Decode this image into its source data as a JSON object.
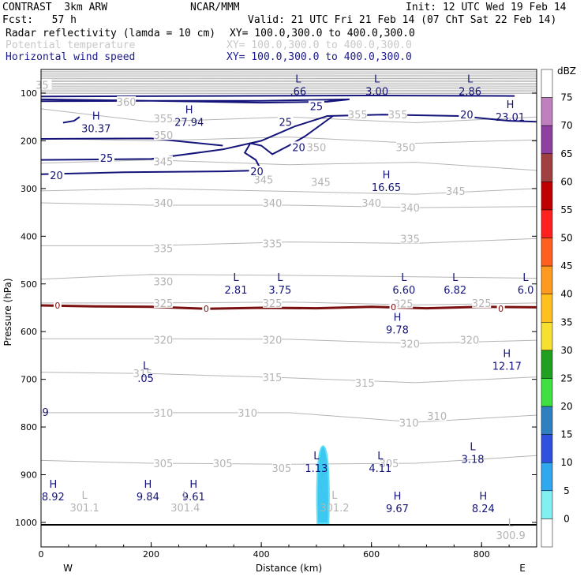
{
  "header": {
    "model": "CONTRAST  3km ARW",
    "org": "NCAR/MMM",
    "init": "Init: 12 UTC Wed 19 Feb 14",
    "fcst": "Fcst:   57 h",
    "valid": "Valid: 21 UTC Fri 21 Feb 14 (07 ChT Sat 22 Feb 14)",
    "field1": "Radar reflectivity (lamda = 10 cm)",
    "field1_xy": "XY= 100.0,300.0 to 400.0,300.0",
    "field2": "Potential temperature",
    "field2_xy": "XY= 100.0,300.0 to 400.0,300.0",
    "field3": "Horizontal wind speed",
    "field3_xy": "XY= 100.0,300.0 to 400.0,300.0"
  },
  "colors": {
    "theta": "#b4b4b4",
    "wind": "#14147a",
    "zero_line": "#7a1010",
    "reflectivity": "#3cc8f0"
  },
  "chart_data": {
    "type": "cross-section",
    "xlabel": "Distance (km)",
    "ylabel": "Pressure (hPa)",
    "xlim": [
      0,
      900
    ],
    "ylim": [
      1050,
      50
    ],
    "x_ticks": [
      "0",
      "200",
      "400",
      "600",
      "800"
    ],
    "y_ticks": [
      "100",
      "200",
      "300",
      "400",
      "500",
      "600",
      "700",
      "800",
      "900",
      "1000"
    ],
    "x_dir_left": "W",
    "x_dir_right": "E",
    "colorbar": {
      "unit": "dBZ",
      "levels": [
        "75",
        "70",
        "65",
        "60",
        "55",
        "50",
        "45",
        "40",
        "35",
        "30",
        "25",
        "20",
        "15",
        "10",
        "5",
        "0"
      ],
      "colors": [
        "#ffffff",
        "#c080c0",
        "#9040a0",
        "#a04040",
        "#c00000",
        "#ff2020",
        "#ff6020",
        "#ff9a20",
        "#ffc020",
        "#f8e030",
        "#20a020",
        "#40e040",
        "#3080c0",
        "#3050e0",
        "#30a8f0",
        "#80f0f0",
        "#ffffff"
      ]
    },
    "theta_labels": [
      {
        "text": "35",
        "x": 2,
        "p": 83
      },
      {
        "text": "360",
        "x": 155,
        "p": 118
      },
      {
        "text": "355",
        "x": 222,
        "p": 153
      },
      {
        "text": "350",
        "x": 222,
        "p": 188
      },
      {
        "text": "345",
        "x": 222,
        "p": 243
      },
      {
        "text": "350",
        "x": 500,
        "p": 213
      },
      {
        "text": "350",
        "x": 662,
        "p": 213
      },
      {
        "text": "355",
        "x": 575,
        "p": 145
      },
      {
        "text": "355",
        "x": 648,
        "p": 145
      },
      {
        "text": "345",
        "x": 404,
        "p": 281
      },
      {
        "text": "345",
        "x": 508,
        "p": 286
      },
      {
        "text": "345",
        "x": 753,
        "p": 305
      },
      {
        "text": "340",
        "x": 222,
        "p": 330
      },
      {
        "text": "340",
        "x": 420,
        "p": 330
      },
      {
        "text": "340",
        "x": 600,
        "p": 330
      },
      {
        "text": "340",
        "x": 670,
        "p": 340
      },
      {
        "text": "335",
        "x": 222,
        "p": 425
      },
      {
        "text": "335",
        "x": 420,
        "p": 415
      },
      {
        "text": "335",
        "x": 670,
        "p": 405
      },
      {
        "text": "330",
        "x": 222,
        "p": 495
      },
      {
        "text": "325",
        "x": 222,
        "p": 540
      },
      {
        "text": "325",
        "x": 420,
        "p": 540
      },
      {
        "text": "325",
        "x": 658,
        "p": 541
      },
      {
        "text": "325",
        "x": 800,
        "p": 540
      },
      {
        "text": "320",
        "x": 222,
        "p": 617
      },
      {
        "text": "320",
        "x": 420,
        "p": 617
      },
      {
        "text": "320",
        "x": 670,
        "p": 625
      },
      {
        "text": "320",
        "x": 778,
        "p": 617
      },
      {
        "text": "315",
        "x": 185,
        "p": 687
      },
      {
        "text": "315",
        "x": 420,
        "p": 696
      },
      {
        "text": "315",
        "x": 588,
        "p": 707
      },
      {
        "text": "310",
        "x": 222,
        "p": 770
      },
      {
        "text": "310",
        "x": 375,
        "p": 770
      },
      {
        "text": "310",
        "x": 668,
        "p": 791
      },
      {
        "text": "310",
        "x": 719,
        "p": 777
      },
      {
        "text": "305",
        "x": 222,
        "p": 876
      },
      {
        "text": "305",
        "x": 330,
        "p": 876
      },
      {
        "text": "305",
        "x": 437,
        "p": 886
      },
      {
        "text": "305",
        "x": 632,
        "p": 876
      }
    ],
    "wind_labels": [
      {
        "text": "25",
        "x": 500,
        "p": 127
      },
      {
        "text": "25",
        "x": 444,
        "p": 160
      },
      {
        "text": "20",
        "x": 773,
        "p": 145
      },
      {
        "text": "20",
        "x": 468,
        "p": 213
      },
      {
        "text": "25",
        "x": 119,
        "p": 236
      },
      {
        "text": "20",
        "x": 392,
        "p": 264
      },
      {
        "text": "20",
        "x": 28,
        "p": 272
      }
    ],
    "zero_labels": [
      {
        "text": "0",
        "x": 30,
        "p": 545
      },
      {
        "text": "0",
        "x": 300,
        "p": 552
      },
      {
        "text": "0",
        "x": 640,
        "p": 548
      },
      {
        "text": "0",
        "x": 835,
        "p": 552
      }
    ],
    "extrema": [
      {
        "kind": "L",
        "value": ".66",
        "x": 467,
        "p": 84
      },
      {
        "kind": "L",
        "value": "3.00",
        "x": 610,
        "p": 84
      },
      {
        "kind": "L",
        "value": "2.86",
        "x": 779,
        "p": 84
      },
      {
        "kind": "H",
        "value": "23.01",
        "x": 852,
        "p": 138
      },
      {
        "kind": "H",
        "value": "30.37",
        "x": 100,
        "p": 162
      },
      {
        "kind": "H",
        "value": "27.94",
        "x": 269,
        "p": 149
      },
      {
        "kind": "H",
        "value": "16.65",
        "x": 627,
        "p": 285
      },
      {
        "kind": "L",
        "value": "2.81",
        "x": 354,
        "p": 500
      },
      {
        "kind": "L",
        "value": "3.75",
        "x": 434,
        "p": 500
      },
      {
        "kind": "L",
        "value": "6.60",
        "x": 659,
        "p": 500
      },
      {
        "kind": "L",
        "value": "6.82",
        "x": 752,
        "p": 500
      },
      {
        "kind": "L",
        "value": "6.0",
        "x": 880,
        "p": 500
      },
      {
        "kind": "H",
        "value": "9.78",
        "x": 647,
        "p": 584
      },
      {
        "kind": "H",
        "value": "12.17",
        "x": 846,
        "p": 660
      },
      {
        "kind": "L",
        "value": ".05",
        "x": 190,
        "p": 686
      },
      {
        "kind": "",
        "value": "9",
        "x": 8,
        "p": 757
      },
      {
        "kind": "L",
        "value": "1.13",
        "x": 500,
        "p": 874
      },
      {
        "kind": "L",
        "value": "4.11",
        "x": 616,
        "p": 874
      },
      {
        "kind": "L",
        "value": "3.18",
        "x": 784,
        "p": 855
      },
      {
        "kind": "H",
        "value": "8.92",
        "x": 22,
        "p": 934
      },
      {
        "kind": "H",
        "value": "9.84",
        "x": 194,
        "p": 934
      },
      {
        "kind": "H",
        "value": "9.61",
        "x": 277,
        "p": 934
      },
      {
        "kind": "H",
        "value": "9.67",
        "x": 647,
        "p": 959
      },
      {
        "kind": "H",
        "value": "8.24",
        "x": 803,
        "p": 959
      }
    ],
    "surface_theta": [
      {
        "kind": "L",
        "value": "301.1",
        "x": 79,
        "p": 957
      },
      {
        "kind": "L",
        "value": "301.4",
        "x": 262,
        "p": 957
      },
      {
        "kind": "L",
        "value": "301.2",
        "x": 533,
        "p": 957
      },
      {
        "kind": "L",
        "value": "300.9",
        "x": 853,
        "p": 1015
      }
    ]
  }
}
